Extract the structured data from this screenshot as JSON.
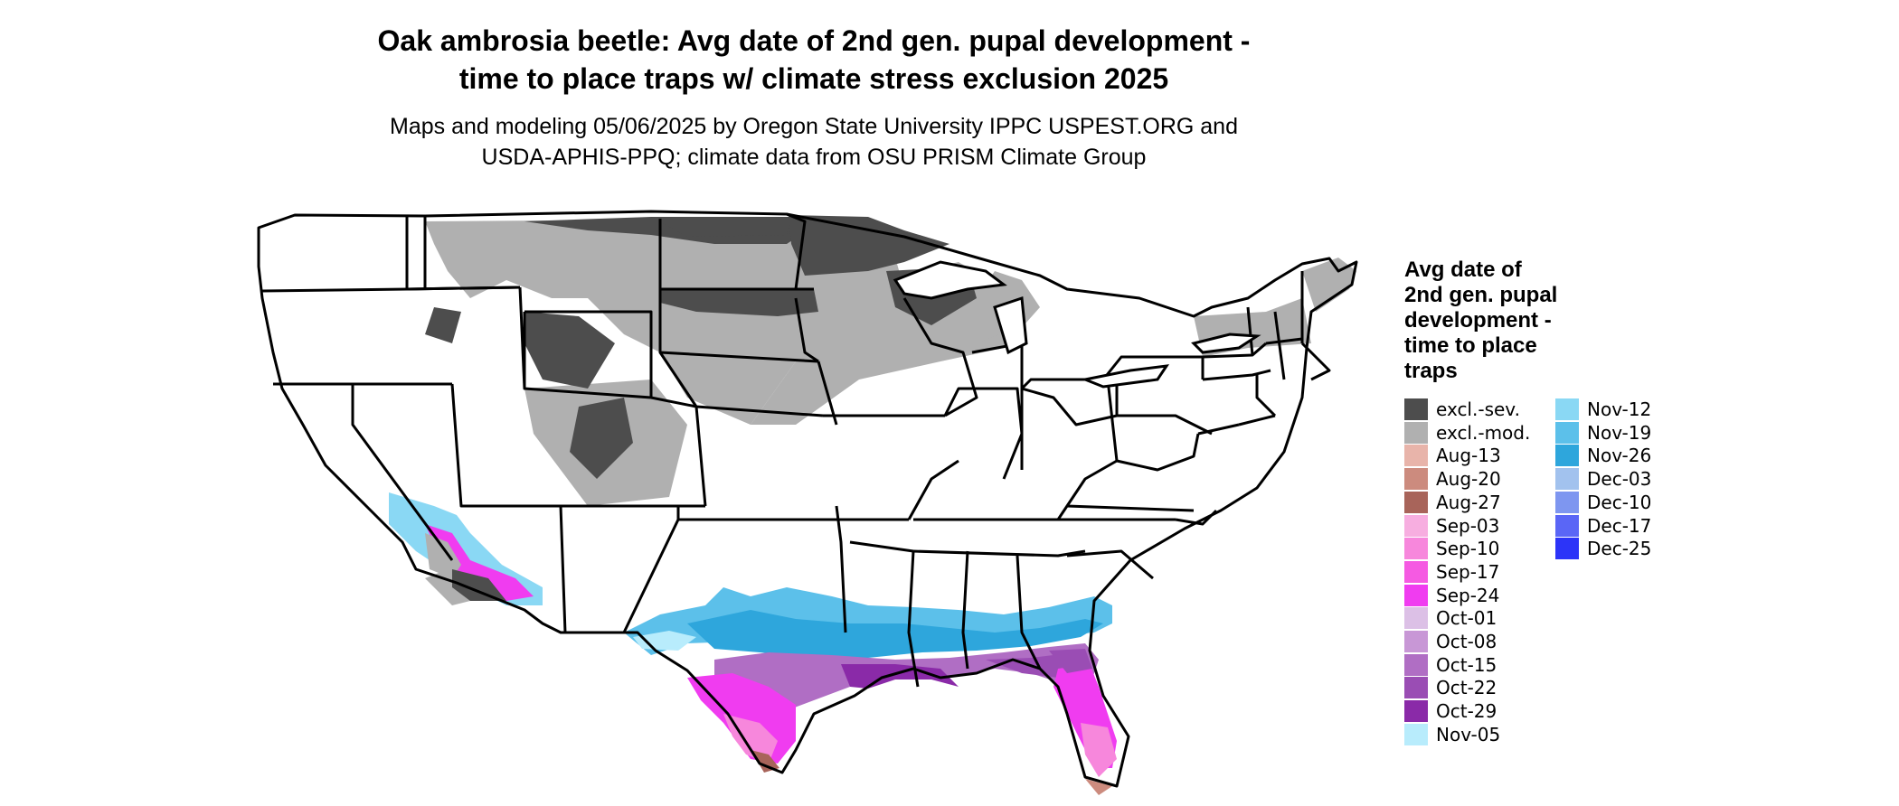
{
  "title_line1": "Oak ambrosia beetle: Avg date of 2nd gen. pupal development -",
  "title_line2": "time to place traps w/ climate stress exclusion 2025",
  "subtitle_line1": "Maps and modeling 05/06/2025 by Oregon State University IPPC USPEST.ORG and",
  "subtitle_line2": "USDA-APHIS-PPQ; climate data from OSU PRISM Climate Group",
  "legend": {
    "title_lines": [
      "Avg date of",
      "2nd gen. pupal",
      "development -",
      "time to place",
      "traps"
    ],
    "items": [
      {
        "label": "excl.-sev.",
        "color": "#4d4d4d"
      },
      {
        "label": "excl.-mod.",
        "color": "#b0b0b0"
      },
      {
        "label": "Aug-13",
        "color": "#e8b4aa"
      },
      {
        "label": "Aug-20",
        "color": "#cc8b7e"
      },
      {
        "label": "Aug-27",
        "color": "#a8645a"
      },
      {
        "label": "Sep-03",
        "color": "#f7aee0"
      },
      {
        "label": "Sep-10",
        "color": "#f787dc"
      },
      {
        "label": "Sep-17",
        "color": "#f55ae2"
      },
      {
        "label": "Sep-24",
        "color": "#f03cf0"
      },
      {
        "label": "Oct-01",
        "color": "#dcc0e6"
      },
      {
        "label": "Oct-08",
        "color": "#c897d6"
      },
      {
        "label": "Oct-15",
        "color": "#b06ec4"
      },
      {
        "label": "Oct-22",
        "color": "#9a4db4"
      },
      {
        "label": "Oct-29",
        "color": "#8a2aa8"
      },
      {
        "label": "Nov-05",
        "color": "#b8ecfc"
      },
      {
        "label": "Nov-12",
        "color": "#8ad8f4"
      },
      {
        "label": "Nov-19",
        "color": "#5cc0ea"
      },
      {
        "label": "Nov-26",
        "color": "#2ea6dc"
      },
      {
        "label": "Dec-03",
        "color": "#a2c2ee"
      },
      {
        "label": "Dec-10",
        "color": "#7e96f0"
      },
      {
        "label": "Dec-17",
        "color": "#5a66f6"
      },
      {
        "label": "Dec-25",
        "color": "#2c34f8"
      }
    ]
  }
}
